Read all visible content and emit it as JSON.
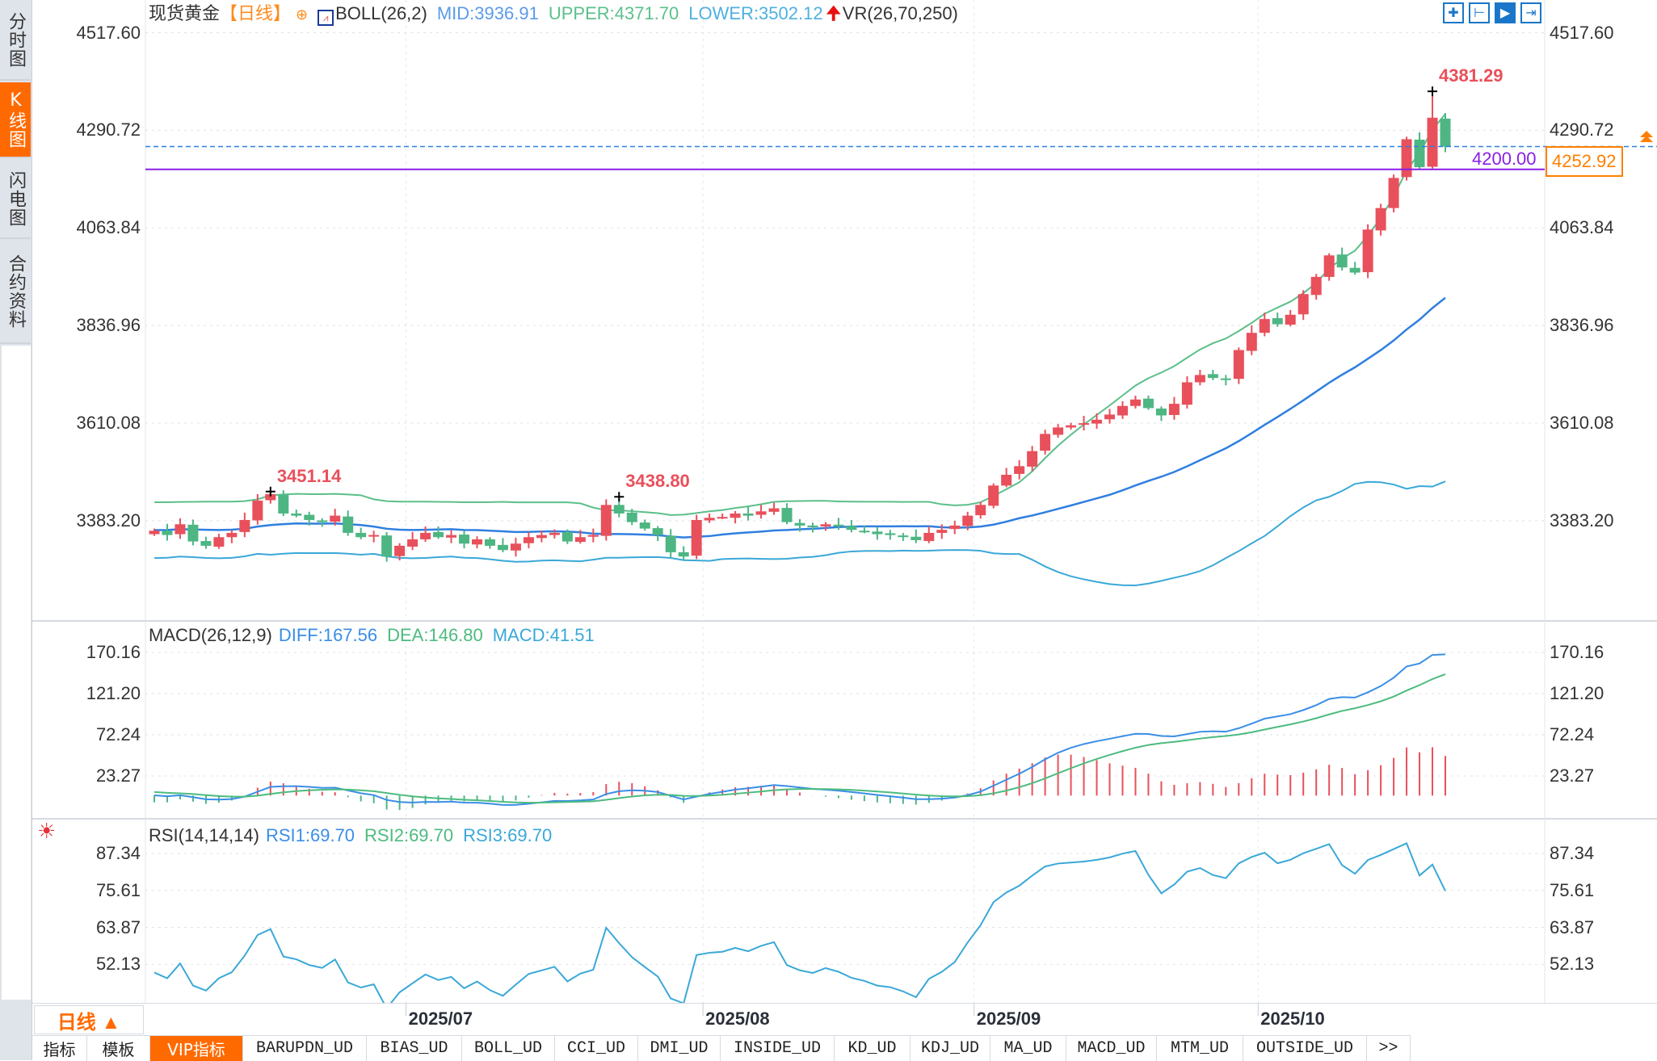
{
  "sidebar": {
    "tabs": [
      {
        "label": "分时图"
      },
      {
        "label": "K线图"
      },
      {
        "label": "闪电图"
      },
      {
        "label": "合约资料"
      }
    ],
    "active": 1
  },
  "header": {
    "symbol": "现货黄金",
    "period": "【日线】",
    "boll": "BOLL(26,2)",
    "mid": "MID:3936.91",
    "upper": "UPPER:4371.70",
    "lower": "LOWER:3502.12",
    "vr": "VR(26,70,250)"
  },
  "toolbar": {
    "icons": [
      "crosshair-icon",
      "range-icon",
      "play-icon",
      "move-right-icon"
    ],
    "active": 2
  },
  "main": {
    "ticks": [
      "4517.60",
      "4290.72",
      "4063.84",
      "3836.96",
      "3610.08",
      "3383.20"
    ],
    "line_price": "4200.00",
    "last_price": "4252.92",
    "high_labels": [
      {
        "text": "3451.14",
        "index": 9
      },
      {
        "text": "3438.80",
        "index": 36
      },
      {
        "text": "4381.29",
        "index": 99
      }
    ]
  },
  "macd": {
    "title": "MACD(26,12,9)",
    "diff": "DIFF:167.56",
    "dea": "DEA:146.80",
    "macd": "MACD:41.51",
    "ticks": [
      "170.16",
      "121.20",
      "72.24",
      "23.27"
    ]
  },
  "rsi": {
    "title": "RSI(14,14,14)",
    "rsi1": "RSI1:69.70",
    "rsi2": "RSI2:69.70",
    "rsi3": "RSI3:69.70",
    "ticks": [
      "87.34",
      "75.61",
      "63.87",
      "52.13"
    ]
  },
  "date_axis": {
    "period": "日线 ▲",
    "labels": [
      {
        "text": "2025/07",
        "index": 20
      },
      {
        "text": "2025/08",
        "index": 43
      },
      {
        "text": "2025/09",
        "index": 64
      },
      {
        "text": "2025/10",
        "index": 86
      }
    ]
  },
  "bottom_tabs": {
    "items": [
      "指标",
      "模板",
      "VIP指标",
      "BARUPDN_UD",
      "BIAS_UD",
      "BOLL_UD",
      "CCI_UD",
      "DMI_UD",
      "INSIDE_UD",
      "KD_UD",
      "KDJ_UD",
      "MA_UD",
      "MACD_UD",
      "MTM_UD",
      "OUTSIDE_UD",
      ">>"
    ],
    "active": 2
  },
  "colors": {
    "up": "#e8505b",
    "down": "#4db683",
    "upper": "#5cbf8a",
    "mid": "#2f7fe0",
    "lower": "#3aa8d8",
    "line": "#8a1ee6",
    "last": "#ff7f00"
  },
  "chart_data": {
    "type": "candlestick",
    "title": "现货黄金 日线",
    "ylim": [
      3250,
      4517.6
    ],
    "closes": [
      3360,
      3350,
      3375,
      3335,
      3325,
      3345,
      3355,
      3385,
      3430,
      3445,
      3400,
      3395,
      3385,
      3380,
      3395,
      3355,
      3345,
      3350,
      3300,
      3325,
      3340,
      3355,
      3345,
      3350,
      3330,
      3340,
      3325,
      3315,
      3330,
      3345,
      3350,
      3355,
      3335,
      3345,
      3350,
      3420,
      3400,
      3380,
      3365,
      3350,
      3310,
      3300,
      3385,
      3390,
      3392,
      3400,
      3395,
      3405,
      3412,
      3380,
      3372,
      3368,
      3375,
      3370,
      3362,
      3358,
      3352,
      3350,
      3345,
      3338,
      3355,
      3362,
      3372,
      3395,
      3420,
      3465,
      3490,
      3510,
      3545,
      3585,
      3600,
      3605,
      3610,
      3618,
      3630,
      3650,
      3665,
      3645,
      3628,
      3655,
      3705,
      3722,
      3715,
      3712,
      3780,
      3820,
      3852,
      3840,
      3862,
      3910,
      3950,
      4000,
      3972,
      3960,
      4060,
      4110,
      4180,
      4270,
      4205,
      4320,
      4252.92
    ],
    "highs_override": {
      "9": 3451.14,
      "36": 3438.8,
      "99": 4381.29
    }
  }
}
